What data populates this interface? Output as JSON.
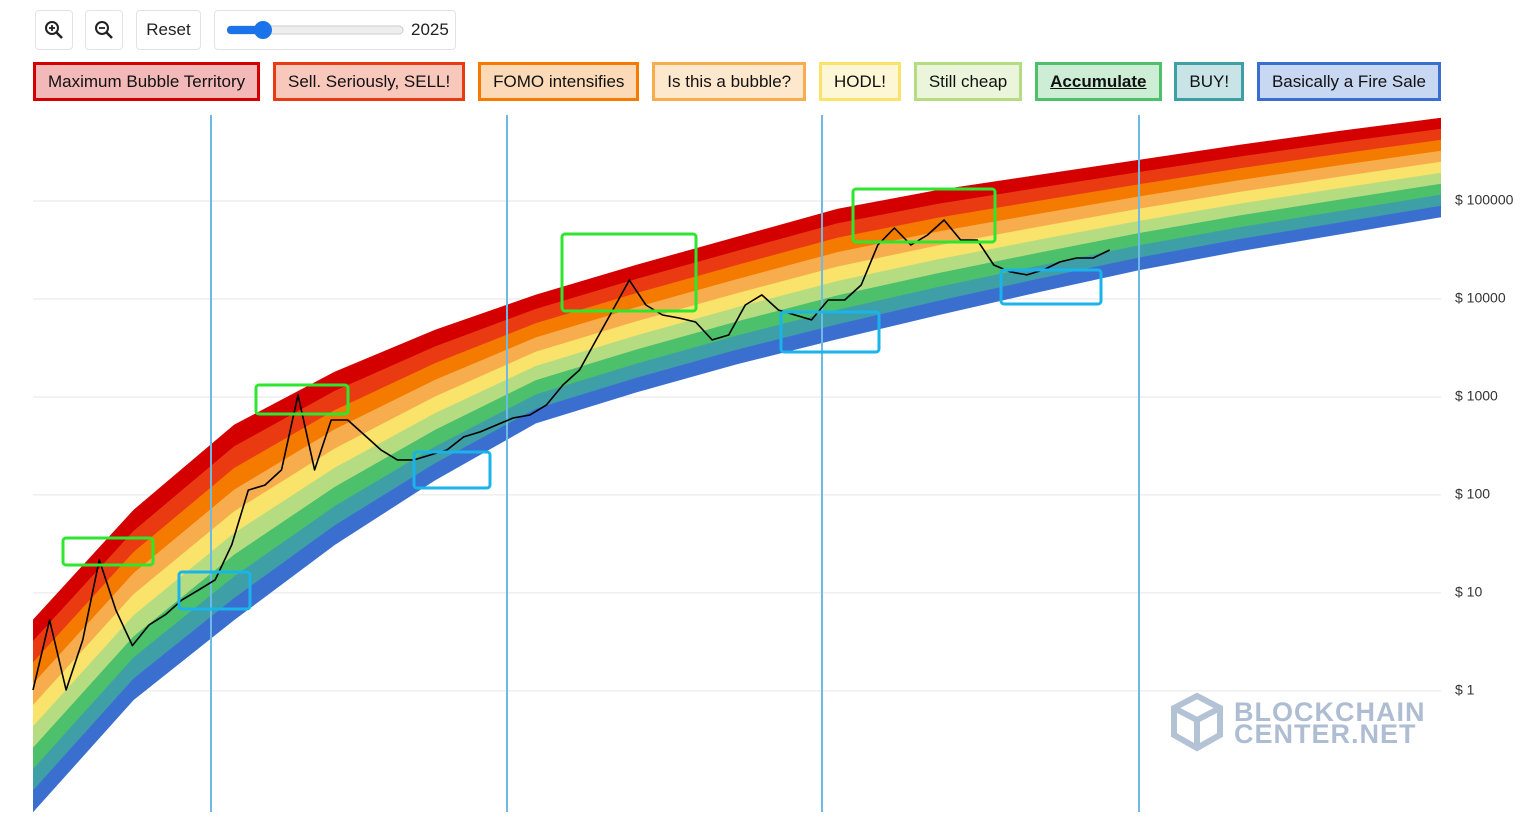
{
  "controls": {
    "reset": "Reset",
    "year": "2025"
  },
  "chart_data": {
    "type": "rainbow",
    "yscale": "log",
    "grid": true,
    "ylim": [
      0.058,
      755000
    ],
    "yticks": [
      {
        "value": 1,
        "label": "$ 1"
      },
      {
        "value": 10,
        "label": "$ 10"
      },
      {
        "value": 100,
        "label": "$ 100"
      },
      {
        "value": 1000,
        "label": "$ 1000"
      },
      {
        "value": 10000,
        "label": "$ 10000"
      },
      {
        "value": 100000,
        "label": "$ 100000"
      }
    ],
    "bands": [
      {
        "name": "Maximum Bubble Territory",
        "color": "#d40000"
      },
      {
        "name": "Sell. Seriously, SELL!",
        "color": "#ea3a12"
      },
      {
        "name": "FOMO intensifies",
        "color": "#f57a00"
      },
      {
        "name": "Is this a bubble?",
        "color": "#f7ad4e"
      },
      {
        "name": "HODL!",
        "color": "#f9e36a"
      },
      {
        "name": "Still cheap",
        "color": "#b6dc82"
      },
      {
        "name": "Accumulate",
        "color": "#4cc06a"
      },
      {
        "name": "BUY!",
        "color": "#3f9fa6"
      },
      {
        "name": "Basically a Fire Sale",
        "color": "#3a6fd0"
      }
    ],
    "rainbow": {
      "upper": [
        5.3,
        70,
        518,
        1800,
        4830,
        11000,
        22200,
        42900,
        82800,
        129000,
        184000,
        262000,
        373000,
        518000,
        703000
      ],
      "lower": [
        0.058,
        0.81,
        5.3,
        31,
        142,
        540,
        1120,
        2170,
        3910,
        6870,
        11800,
        19800,
        30900,
        46000,
        68700
      ]
    },
    "price": {
      "color": "#000000",
      "values": [
        1.02,
        5.3,
        1.02,
        3.3,
        21.7,
        6.7,
        2.9,
        4.7,
        6.0,
        8.5,
        10.7,
        13.6,
        31,
        112,
        126,
        180,
        1050,
        180,
        582,
        582,
        410,
        288,
        228,
        228,
        256,
        288,
        391,
        440,
        518,
        611,
        655,
        829,
        1330,
        1890,
        3820,
        7720,
        15600,
        8690,
        6870,
        6400,
        5820,
        3820,
        4290,
        8690,
        11000,
        7720,
        6870,
        6110,
        9770,
        9770,
        13900,
        35600,
        53000,
        35600,
        45000,
        64000,
        40000,
        40000,
        22200,
        18900,
        17600,
        19800,
        23900,
        26200,
        26200,
        31600,
        null,
        null,
        null,
        null,
        null,
        null,
        null,
        null,
        null,
        null,
        null,
        null,
        null,
        null,
        null,
        null,
        null,
        null,
        null,
        null
      ]
    }
  },
  "watermark": {
    "line1": "BLOCKCHAIN",
    "line2": "CENTER.NET"
  }
}
